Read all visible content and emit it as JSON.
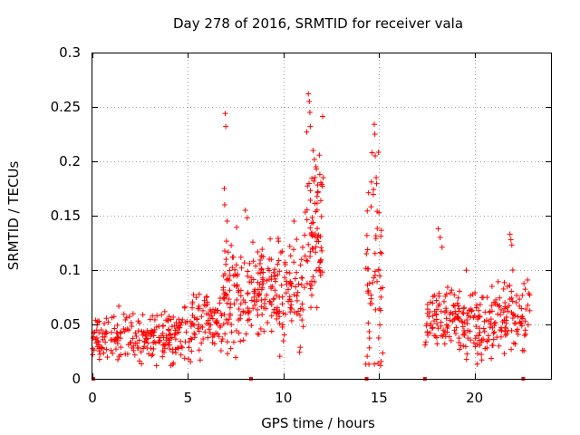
{
  "chart_data": {
    "type": "scatter",
    "title": "Day 278 of 2016, SRMTID for receiver vala",
    "xlabel": "GPS time / hours",
    "ylabel": "SRMTID / TECUs",
    "xlim": [
      0,
      24
    ],
    "ylim": [
      0,
      0.3
    ],
    "xticks": [
      0,
      5,
      10,
      15,
      20
    ],
    "xtick_labels": [
      "0",
      "5",
      "10",
      "15",
      "20"
    ],
    "yticks": [
      0,
      0.05,
      0.1,
      0.15,
      0.2,
      0.25,
      0.3
    ],
    "ytick_labels": [
      "0",
      "0.05",
      "0.1",
      "0.15",
      "0.2",
      "0.25",
      "0.3"
    ],
    "grid": true,
    "marker": "+",
    "series_color": "#ff0000",
    "gap_markers_x": [
      0.05,
      8.3,
      14.35,
      17.4,
      22.55
    ],
    "segments": [
      {
        "start": 0.0,
        "end": 4.0,
        "base": 0.038,
        "spread": 0.012,
        "n": 180
      },
      {
        "start": 4.0,
        "end": 5.2,
        "base": 0.04,
        "spread": 0.013,
        "n": 60
      },
      {
        "start": 5.2,
        "end": 6.8,
        "base": 0.052,
        "spread": 0.014,
        "n": 80
      },
      {
        "start": 6.8,
        "end": 7.6,
        "base": 0.075,
        "spread": 0.03,
        "n": 60
      },
      {
        "start": 7.6,
        "end": 9.5,
        "base": 0.08,
        "spread": 0.022,
        "n": 110
      },
      {
        "start": 9.5,
        "end": 11.1,
        "base": 0.078,
        "spread": 0.022,
        "n": 90
      },
      {
        "start": 11.1,
        "end": 12.1,
        "base": 0.14,
        "spread": 0.04,
        "n": 80
      },
      {
        "start": 14.3,
        "end": 15.2,
        "base": 0.095,
        "spread": 0.05,
        "n": 60
      },
      {
        "start": 17.4,
        "end": 22.9,
        "base": 0.055,
        "spread": 0.016,
        "n": 280
      }
    ],
    "peaks": [
      {
        "x": 6.95,
        "y": 0.244
      },
      {
        "x": 6.98,
        "y": 0.232
      },
      {
        "x": 6.9,
        "y": 0.175
      },
      {
        "x": 6.92,
        "y": 0.16
      },
      {
        "x": 7.05,
        "y": 0.145
      },
      {
        "x": 8.0,
        "y": 0.155
      },
      {
        "x": 8.1,
        "y": 0.148
      },
      {
        "x": 10.55,
        "y": 0.145
      },
      {
        "x": 11.3,
        "y": 0.262
      },
      {
        "x": 11.35,
        "y": 0.255
      },
      {
        "x": 11.38,
        "y": 0.245
      },
      {
        "x": 11.4,
        "y": 0.232
      },
      {
        "x": 11.55,
        "y": 0.21
      },
      {
        "x": 11.7,
        "y": 0.195
      },
      {
        "x": 11.9,
        "y": 0.188
      },
      {
        "x": 14.75,
        "y": 0.234
      },
      {
        "x": 14.78,
        "y": 0.225
      },
      {
        "x": 14.8,
        "y": 0.205
      },
      {
        "x": 14.85,
        "y": 0.185
      },
      {
        "x": 14.6,
        "y": 0.181
      },
      {
        "x": 14.9,
        "y": 0.154
      },
      {
        "x": 18.1,
        "y": 0.138
      },
      {
        "x": 18.2,
        "y": 0.13
      },
      {
        "x": 18.3,
        "y": 0.121
      },
      {
        "x": 21.85,
        "y": 0.133
      },
      {
        "x": 21.9,
        "y": 0.128
      },
      {
        "x": 21.95,
        "y": 0.123
      },
      {
        "x": 22.0,
        "y": 0.1
      }
    ]
  }
}
